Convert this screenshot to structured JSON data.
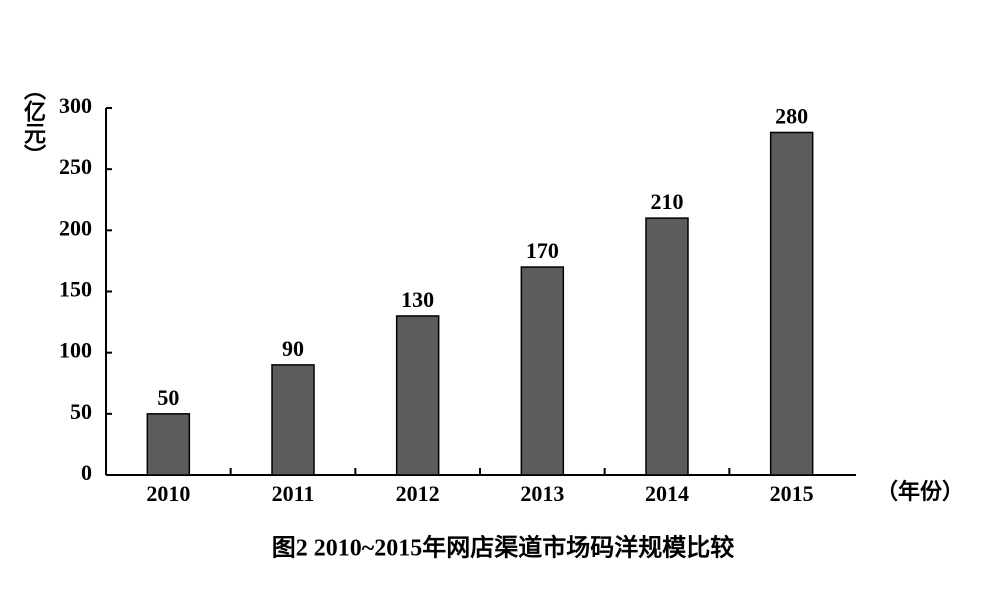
{
  "chart_data": {
    "type": "bar",
    "title": "图2  2010~2015年网店渠道市场码洋规模比较",
    "x_label": "（年份）",
    "y_label": "（亿元）",
    "categories": [
      "2010",
      "2011",
      "2012",
      "2013",
      "2014",
      "2015"
    ],
    "values": [
      50,
      90,
      130,
      170,
      210,
      280
    ],
    "color": "#5c5c5c",
    "ylim": [
      0,
      300
    ],
    "yticks": [
      0,
      50,
      100,
      150,
      200,
      250,
      300
    ],
    "grid": false
  }
}
